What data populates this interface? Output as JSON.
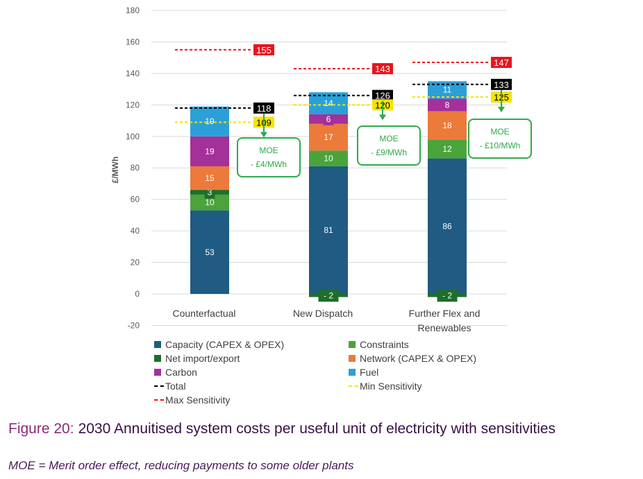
{
  "chart_data": {
    "type": "bar",
    "stacked": true,
    "ylabel": "£/MWh",
    "ylim": [
      -20,
      180
    ],
    "yticks": [
      180,
      160,
      140,
      120,
      100,
      80,
      60,
      40,
      20,
      0,
      -20
    ],
    "grid": true,
    "categories": [
      "Counterfactual",
      "New Dispatch",
      "Further Flex and Renewables"
    ],
    "series": [
      {
        "name": "Capacity (CAPEX & OPEX)",
        "color": "#1f5b82",
        "values": [
          53,
          81,
          86
        ],
        "labels": [
          "53",
          "81",
          "86"
        ]
      },
      {
        "name": "Constraints",
        "color": "#4aa43a",
        "values": [
          10,
          10,
          12
        ],
        "labels": [
          "10",
          "10",
          "12"
        ]
      },
      {
        "name": "Net import/export",
        "color": "#1e6e2c",
        "values": [
          3,
          -2,
          -2
        ],
        "labels": [
          "3",
          "- 2",
          "- 2"
        ]
      },
      {
        "name": "Network (CAPEX & OPEX)",
        "color": "#ec7a3a",
        "values": [
          15,
          17,
          18
        ],
        "labels": [
          "15",
          "17",
          "18"
        ]
      },
      {
        "name": "Carbon",
        "color": "#a4309a",
        "values": [
          19,
          6,
          8
        ],
        "labels": [
          "19",
          "6",
          "8"
        ]
      },
      {
        "name": "Fuel",
        "color": "#2ba0d8",
        "values": [
          19,
          14,
          11
        ],
        "labels": [
          "19",
          "14",
          "11"
        ]
      }
    ],
    "total": {
      "name": "Total",
      "color": "#000000",
      "values": [
        118,
        126,
        133
      ],
      "labels": [
        "118",
        "126",
        "133"
      ]
    },
    "min_sensitivity": {
      "name": "Min Sensitivity",
      "color": "#f5e400",
      "values": [
        109,
        120,
        125
      ],
      "labels": [
        "109",
        "120",
        "125"
      ]
    },
    "max_sensitivity": {
      "name": "Max Sensitivity",
      "color": "#e8141e",
      "values": [
        155,
        143,
        147
      ],
      "labels": [
        "155",
        "143",
        "147"
      ]
    },
    "moe_annotations": [
      {
        "title": "MOE",
        "value": "- £4/MWh"
      },
      {
        "title": "MOE",
        "value": "- £9/MWh"
      },
      {
        "title": "MOE",
        "value": "- £10/MWh"
      }
    ],
    "legend": [
      {
        "label": "Capacity (CAPEX & OPEX)",
        "kind": "box",
        "color": "#1f5b82"
      },
      {
        "label": "Constraints",
        "kind": "box",
        "color": "#4aa43a"
      },
      {
        "label": "Net import/export",
        "kind": "box",
        "color": "#1e6e2c"
      },
      {
        "label": "Network (CAPEX & OPEX)",
        "kind": "box",
        "color": "#ec7a3a"
      },
      {
        "label": "Carbon",
        "kind": "box",
        "color": "#a4309a"
      },
      {
        "label": "Fuel",
        "kind": "box",
        "color": "#2ba0d8"
      },
      {
        "label": "Total",
        "kind": "dash",
        "color": "#000000"
      },
      {
        "label": "Min Sensitivity",
        "kind": "dash",
        "color": "#f5e400"
      },
      {
        "label": "Max Sensitivity",
        "kind": "dash",
        "color": "#e8141e"
      }
    ],
    "legend_position": "bottom"
  },
  "caption": {
    "number": "Figure 20:",
    "title": "2030 Annuitised system costs per useful unit of electricity with sensitivities"
  },
  "note": "MOE = Merit order effect, reducing payments to some older plants"
}
